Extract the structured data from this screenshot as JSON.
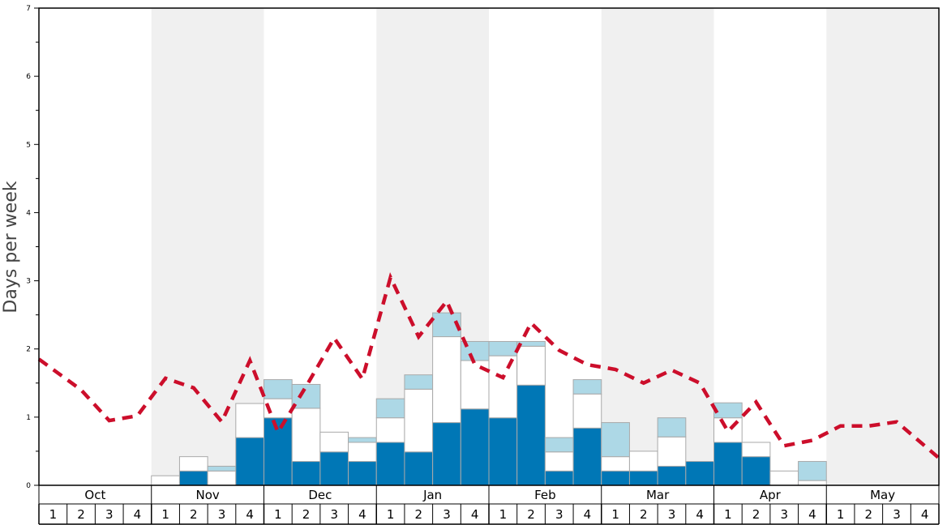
{
  "chart_data": {
    "type": "bar",
    "ylabel": "Days per week",
    "ylim": [
      0,
      7
    ],
    "yticks": [
      "0",
      "1",
      "2",
      "3",
      "4",
      "5",
      "6",
      "7"
    ],
    "months": [
      "Oct",
      "Nov",
      "Dec",
      "Jan",
      "Feb",
      "Mar",
      "Apr",
      "May"
    ],
    "week_labels": [
      "1",
      "2",
      "3",
      "4"
    ],
    "stack_colors": {
      "base": "#0077b6",
      "middle": "#ffffff",
      "top": "#add8e6",
      "line": "#cc0e2b",
      "shade": "#f0f0f0"
    },
    "series": [
      {
        "values": [
          0,
          0,
          0,
          0,
          0,
          0.21,
          0,
          0.7,
          0.99,
          0.35,
          0.49,
          0.35,
          0.63,
          0.49,
          0.92,
          1.12,
          0.99,
          1.47,
          0.21,
          0.84,
          0.21,
          0.21,
          0.28,
          0.35,
          0.63,
          0.42,
          0,
          0,
          0,
          0,
          0,
          0
        ]
      },
      {
        "values": [
          0,
          0,
          0,
          0,
          0.14,
          0.21,
          0.21,
          0.5,
          0.28,
          0.78,
          0.29,
          0.28,
          0.36,
          0.92,
          1.26,
          0.71,
          0.91,
          0.57,
          0.28,
          0.5,
          0.21,
          0.29,
          0.43,
          0,
          0.36,
          0.21,
          0.21,
          0.07,
          0,
          0,
          0,
          0
        ]
      },
      {
        "values": [
          0,
          0,
          0,
          0,
          0,
          0,
          0.07,
          0,
          0.28,
          0.35,
          0,
          0.07,
          0.28,
          0.21,
          0.35,
          0.28,
          0.21,
          0.07,
          0.21,
          0.21,
          0.5,
          0,
          0.28,
          0,
          0.22,
          0,
          0,
          0.28,
          0,
          0,
          0,
          0
        ]
      },
      {
        "values": [
          1.85,
          1.4,
          0.95,
          1.02,
          1.57,
          1.43,
          0.93,
          1.83,
          0.78,
          1.45,
          2.16,
          1.56,
          3.05,
          2.18,
          2.7,
          1.77,
          1.58,
          2.38,
          1.98,
          1.77,
          1.7,
          1.5,
          1.69,
          1.5,
          0.79,
          1.22,
          0.58,
          0.66,
          0.87,
          0.87,
          0.93,
          0.4
        ]
      }
    ]
  }
}
